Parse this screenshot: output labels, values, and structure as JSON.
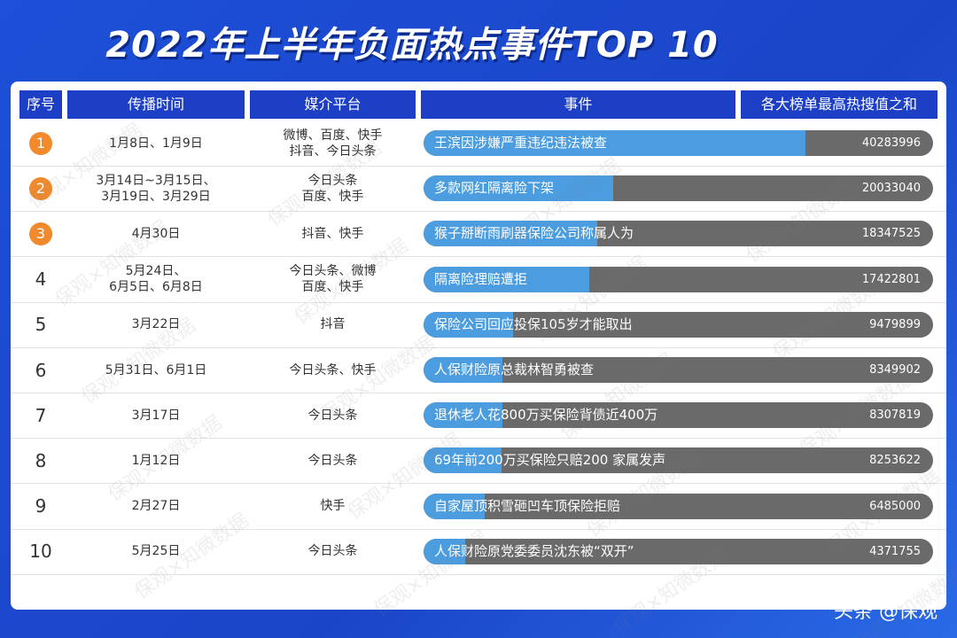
{
  "header": {
    "title": "2022年上半年负面热点事件TOP 10"
  },
  "table": {
    "columns": [
      "序号",
      "传播时间",
      "媒介平台",
      "事件",
      "各大榜单最高热搜值之和"
    ],
    "rows": [
      {
        "rank": 1,
        "time": [
          "1月8日、1月9日"
        ],
        "platform": [
          "微博、百度、快手",
          "抖音、今日头条"
        ],
        "event": "王滨因涉嫌严重违纪违法被查",
        "value": 40283996
      },
      {
        "rank": 2,
        "time": [
          "3月14日~3月15日、",
          "3月19日、3月29日"
        ],
        "platform": [
          "今日头条",
          "百度、快手"
        ],
        "event": "多款网红隔离险下架",
        "value": 20033040
      },
      {
        "rank": 3,
        "time": [
          "4月30日"
        ],
        "platform": [
          "抖音、快手"
        ],
        "event": "猴子掰断雨刷器保险公司称属人为",
        "value": 18347525
      },
      {
        "rank": 4,
        "time": [
          "5月24日、",
          "6月5日、6月8日"
        ],
        "platform": [
          "今日头条、微博",
          "百度、快手"
        ],
        "event": "隔离险理赔遭拒",
        "value": 17422801
      },
      {
        "rank": 5,
        "time": [
          "3月22日"
        ],
        "platform": [
          "抖音"
        ],
        "event": "保险公司回应投保105岁才能取出",
        "value": 9479899
      },
      {
        "rank": 6,
        "time": [
          "5月31日、6月1日"
        ],
        "platform": [
          "今日头条、快手"
        ],
        "event": "人保财险原总裁林智勇被查",
        "value": 8349902
      },
      {
        "rank": 7,
        "time": [
          "3月17日"
        ],
        "platform": [
          "今日头条"
        ],
        "event": "退休老人花800万买保险背债近400万",
        "value": 8307819
      },
      {
        "rank": 8,
        "time": [
          "1月12日"
        ],
        "platform": [
          "今日头条"
        ],
        "event": "69年前200万买保险只赔200 家属发声",
        "value": 8253622
      },
      {
        "rank": 9,
        "time": [
          "2月27日"
        ],
        "platform": [
          "快手"
        ],
        "event": "自家屋顶积雪砸凹车顶保险拒赔",
        "value": 6485000
      },
      {
        "rank": 10,
        "time": [
          "5月25日"
        ],
        "platform": [
          "今日头条"
        ],
        "event": "人保财险原党委委员沈东被“双开”",
        "value": 4371755
      }
    ]
  },
  "watermark": "保观×知微数据",
  "footer": "头条 @保观"
}
